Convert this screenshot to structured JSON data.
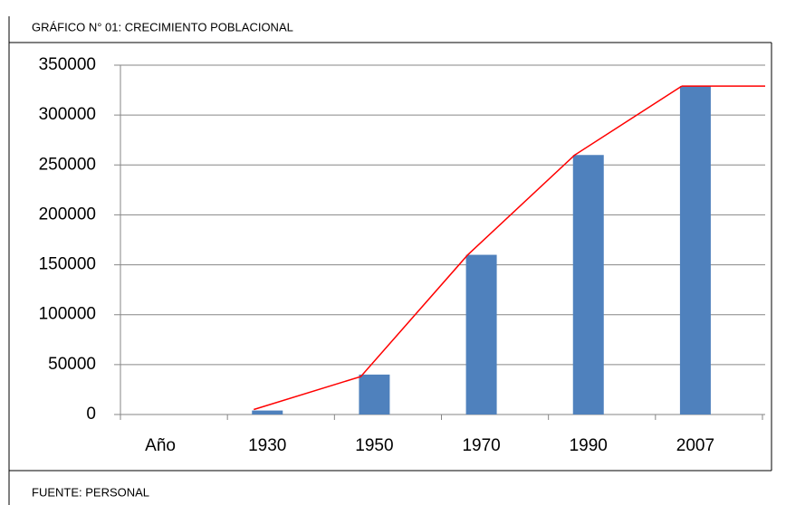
{
  "chart_data": {
    "type": "bar",
    "title": "GRÁFICO N° 01: CRECIMIENTO POBLACIONAL",
    "source": "FUENTE: PERSONAL",
    "categories": [
      "Año",
      "1930",
      "1950",
      "1970",
      "1990",
      "2007"
    ],
    "series": [
      {
        "type": "bar",
        "color": "#4f81bd",
        "values": [
          null,
          4000,
          40000,
          160000,
          260000,
          329000
        ]
      },
      {
        "type": "line",
        "color": "#ff0000",
        "values": [
          null,
          5000,
          38000,
          160000,
          260000,
          329000
        ]
      }
    ],
    "ylim": [
      0,
      350000
    ],
    "yticks": [
      0,
      50000,
      100000,
      150000,
      200000,
      250000,
      300000,
      350000
    ],
    "grid": true
  }
}
